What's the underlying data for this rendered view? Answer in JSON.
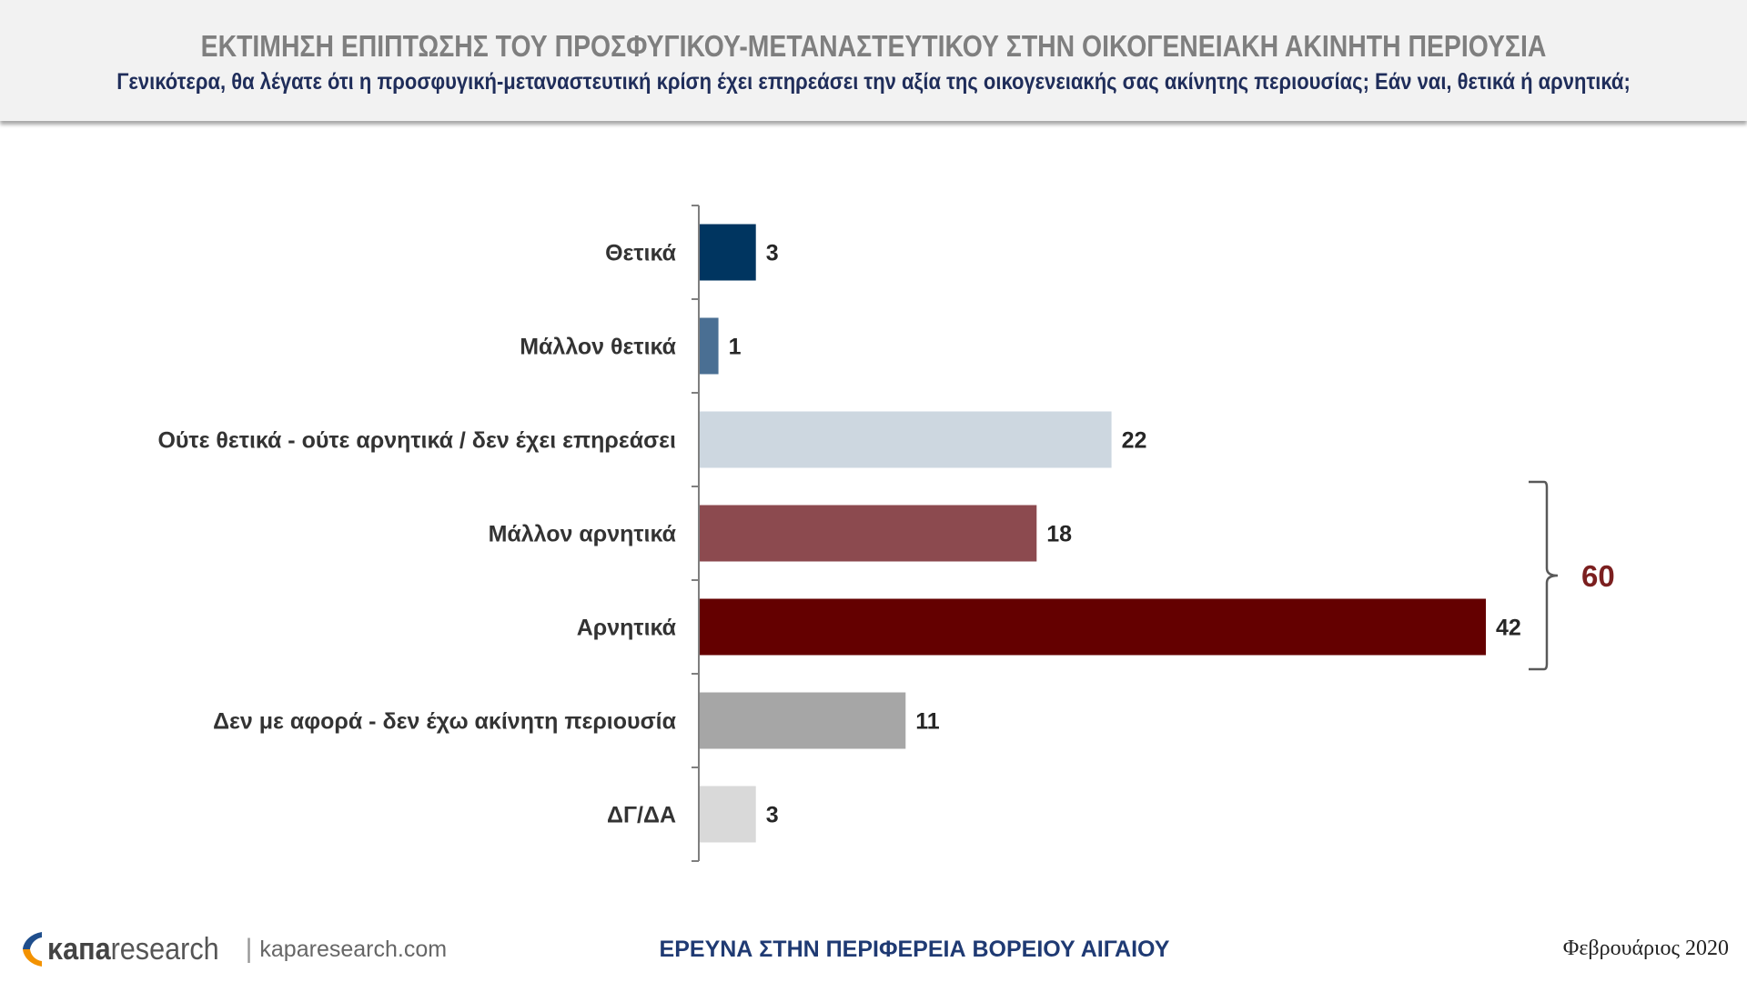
{
  "header": {
    "title": "ΕΚΤΙΜΗΣΗ ΕΠΙΠΤΩΣΗΣ ΤΟΥ ΠΡΟΣΦΥΓΙΚΟΥ-ΜΕΤΑΝΑΣΤΕΥΤΙΚΟΥ ΣΤΗΝ ΟΙΚΟΓΕΝΕΙΑΚΗ ΑΚΙΝΗΤΗ ΠΕΡΙΟΥΣΙΑ",
    "subtitle": "Γενικότερα, θα λέγατε ότι η προσφυγική-μεταναστευτική κρίση έχει επηρεάσει την αξία της οικογενειακής σας ακίνητης περιουσίας; Εάν ναι, θετικά ή αρνητικά;"
  },
  "chart_data": {
    "type": "bar",
    "orientation": "horizontal",
    "categories": [
      "Θετικά",
      "Μάλλον θετικά",
      "Ούτε θετικά - ούτε αρνητικά / δεν έχει επηρεάσει",
      "Μάλλον αρνητικά",
      "Αρνητικά",
      "Δεν με αφορά - δεν έχω ακίνητη περιουσία",
      "ΔΓ/ΔΑ"
    ],
    "values": [
      3,
      1,
      22,
      18,
      42,
      11,
      3
    ],
    "colors": [
      "#003560",
      "#4a6f93",
      "#cdd7e0",
      "#8c4a4f",
      "#640000",
      "#a6a6a6",
      "#d9d9d9"
    ],
    "xlim": [
      0,
      42
    ],
    "grid": false,
    "annotations": [
      {
        "type": "bracket",
        "from_category": 3,
        "to_category": 4,
        "label": "60",
        "color": "#7b1f1f"
      }
    ]
  },
  "footer": {
    "logo_bold": "κапа",
    "logo_rest": "research",
    "logo_separator": "|",
    "website": "kaparesearch.com",
    "center_text": "ΕΡΕΥΝΑ ΣΤΗΝ ΠΕΡΙΦΕΡΕΙΑ ΒΟΡΕΙΟΥ ΑΙΓΑΙΟΥ",
    "date": "Φεβρουάριος 2020",
    "logo_colors": [
      "#1f4e8c",
      "#f39200"
    ]
  }
}
